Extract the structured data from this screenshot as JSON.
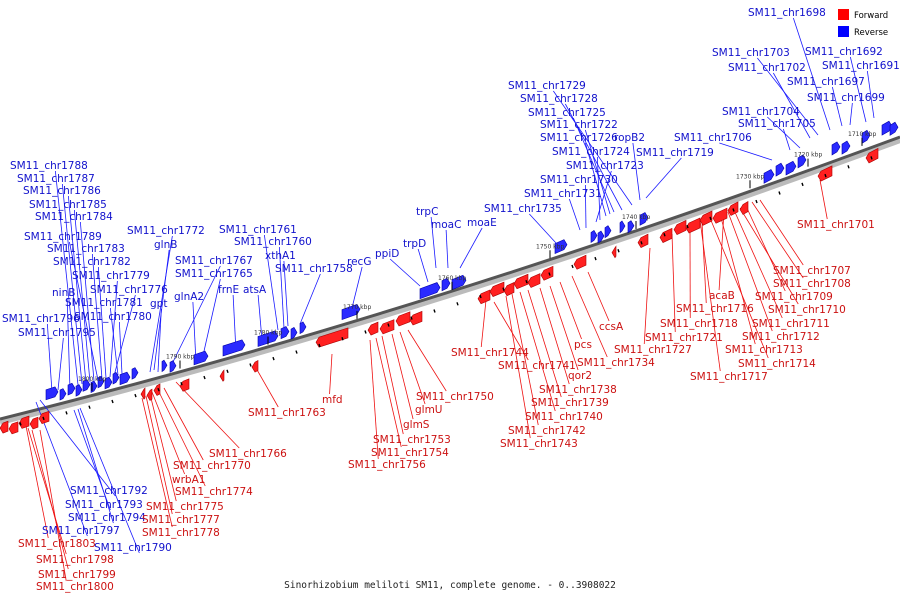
{
  "caption": "Sinorhizobium meliloti SM11, complete genome. - 0..3908022",
  "legend": [
    {
      "label": "Forward",
      "color": "#ff0000"
    },
    {
      "label": "Reverse",
      "color": "#0000ff"
    }
  ],
  "scale_ticks": [
    "1710 kbp",
    "1720 kbp",
    "1730 kbp",
    "1740 kbp",
    "1750 kbp",
    "1760 kbp",
    "1770 kbp",
    "1780 kbp",
    "1790 kbp",
    "1800 kbp"
  ],
  "labels_reverse": [
    "SM11_chr1698",
    "SM11_chr1692",
    "SM11_chr1703",
    "SM11_chr1691",
    "SM11_chr1702",
    "SM11_chr1697",
    "SM11_chr1699",
    "SM11_chr1704",
    "SM11_chr1705",
    "SM11_chr1706",
    "SM11_chr1729",
    "SM11_chr1728",
    "SM11_chr1725",
    "SM11_chr1722",
    "SM11_chr1726",
    "ropB2",
    "SM11_chr1724",
    "SM11_chr1719",
    "SM11_chr1723",
    "SM11_chr1730",
    "SM11_chr1731",
    "SM11_chr1735",
    "trpC",
    "moaC",
    "moaE",
    "trpD",
    "ppiD",
    "recG",
    "SM11_chr1788",
    "SM11_chr1787",
    "SM11_chr1786",
    "SM11_chr1785",
    "SM11_chr1784",
    "SM11_chr1772",
    "SM11_chr1789",
    "glnB",
    "SM11_chr1783",
    "SM11_chr1782",
    "SM11_chr1767",
    "SM11_chr1779",
    "SM11_chr1765",
    "SM11_chr1776",
    "ninB",
    "gpt",
    "glnA2",
    "frnE",
    "atsA",
    "SM11_chr1781",
    "SM11_chr1796",
    "SM11_chr1780",
    "SM11_chr1795",
    "SM11_chr1761",
    "SM11_chr1760",
    "xthA1",
    "SM11_chr1758",
    "SM11_chr1792",
    "SM11_chr1793",
    "SM11_chr1794",
    "SM11_chr1797",
    "SM11_chr1790"
  ],
  "labels_forward": [
    "SM11_chr1701",
    "SM11_chr1707",
    "SM11_chr1708",
    "acaB",
    "SM11_chr1709",
    "SM11_chr1716",
    "SM11_chr1710",
    "SM11_chr1718",
    "SM11_chr1711",
    "SM11_chr1721",
    "SM11_chr1712",
    "SM11_chr1727",
    "SM11_chr1713",
    "SM11_chr1714",
    "SM11_chr1717",
    "ccsA",
    "pcs",
    "SM11_chr1734",
    "SM11_chr1744",
    "qor2",
    "SM11_chr1741",
    "SM11_chr1738",
    "SM11_chr1739",
    "SM11_chr1740",
    "SM11_chr1742",
    "SM11_chr1743",
    "SM11_chr1750",
    "glmU",
    "glmS",
    "SM11_chr1753",
    "SM11_chr1754",
    "SM11_chr1756",
    "mfd",
    "SM11_chr1763",
    "SM11_chr1766",
    "SM11_chr1770",
    "SM11_chr1774",
    "wrbA1",
    "SM11_chr1775",
    "SM11_chr1777",
    "SM11_chr1778",
    "SM11_chr1803",
    "SM11_chr1798",
    "SM11_chr1799",
    "SM11_chr1800"
  ]
}
